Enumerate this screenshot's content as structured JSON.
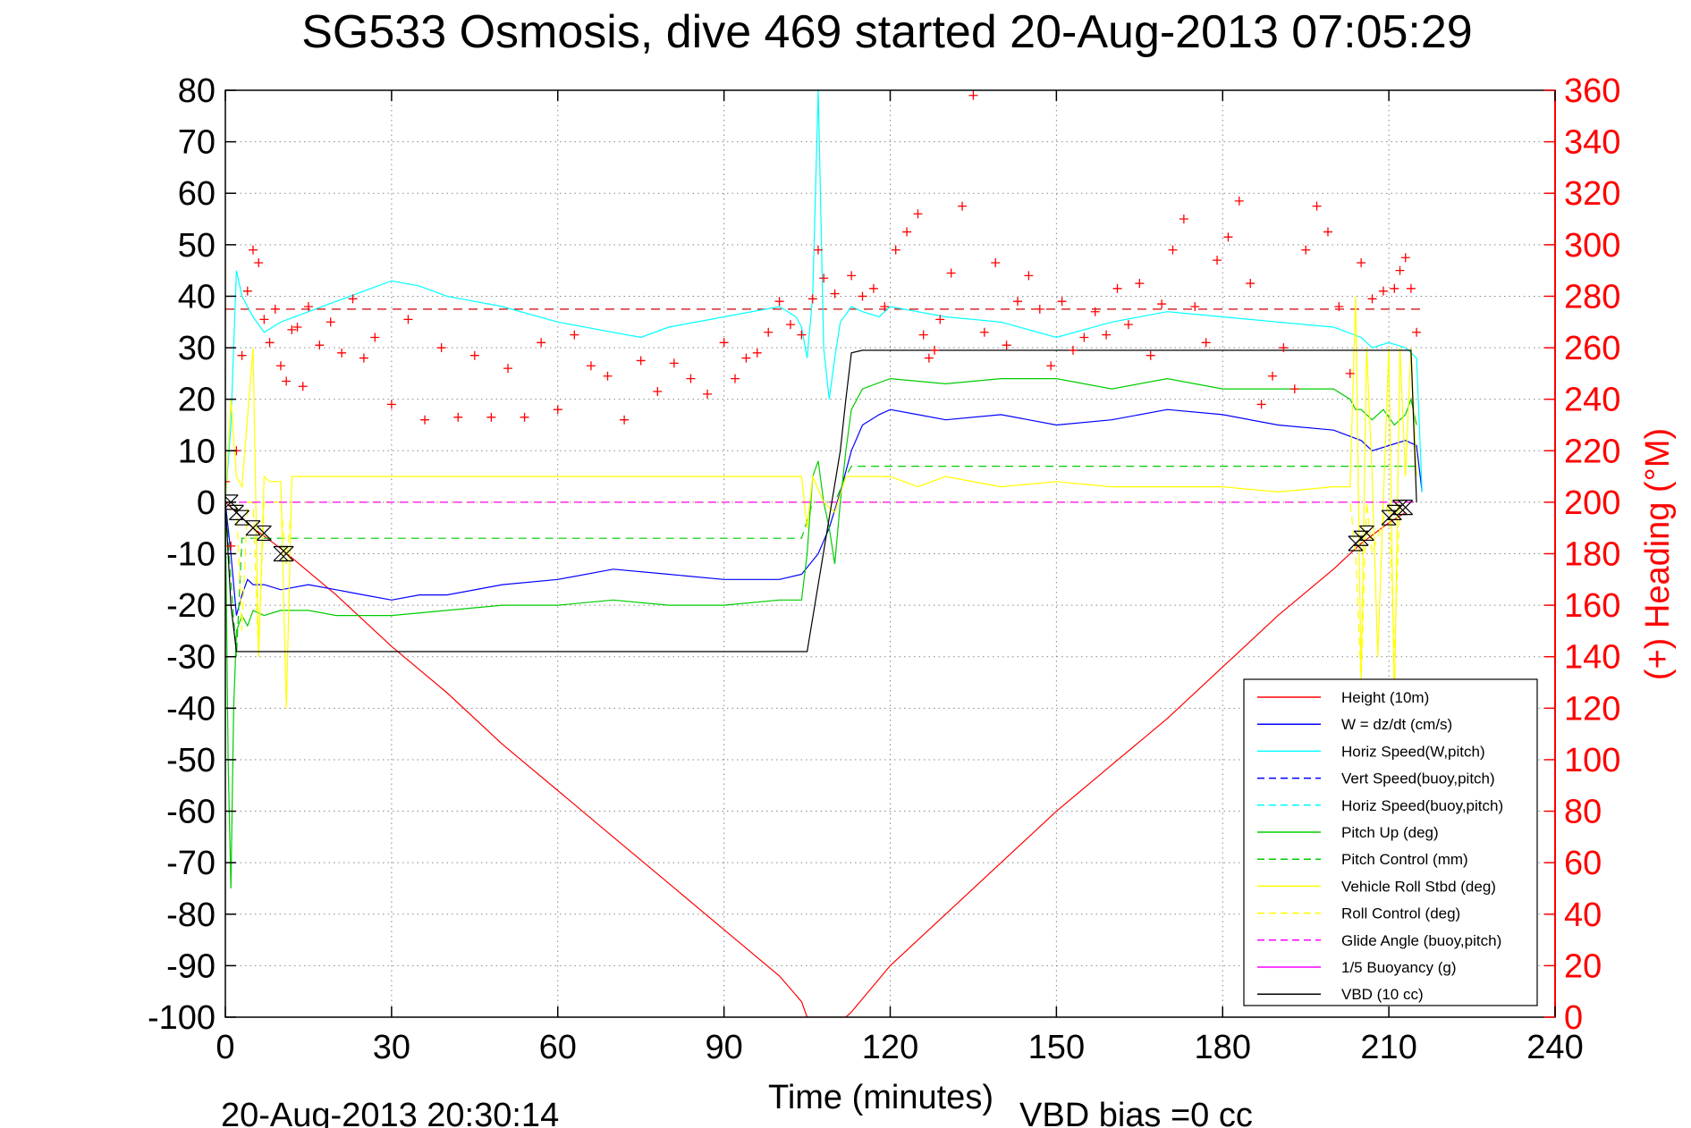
{
  "chart_data": {
    "type": "line",
    "title": "SG533 Osmosis, dive 469 started 20-Aug-2013 07:05:29",
    "xlabel": "Time (minutes)",
    "ylabel": "",
    "y2label": "(+) Heading (°M)",
    "footer_left": "20-Aug-2013 20:30:14",
    "footer_right": "VBD bias =0 cc",
    "xlim": [
      0,
      240
    ],
    "ylim": [
      -100,
      80
    ],
    "y2lim": [
      0,
      360
    ],
    "xticks": [
      0,
      30,
      60,
      90,
      120,
      150,
      180,
      210,
      240
    ],
    "yticks": [
      80,
      70,
      60,
      50,
      40,
      30,
      20,
      10,
      0,
      -10,
      -20,
      -30,
      -40,
      -50,
      -60,
      -70,
      -80,
      -90,
      -100
    ],
    "y2ticks": [
      360,
      340,
      320,
      300,
      280,
      260,
      240,
      220,
      200,
      180,
      160,
      140,
      120,
      100,
      80,
      60,
      40,
      20,
      0
    ],
    "grid": true,
    "legend_position": "lower-right",
    "colors": {
      "red": "#ff0000",
      "blue": "#0000ff",
      "cyan": "#00ffff",
      "green": "#00cc00",
      "yellow": "#ffff00",
      "magenta": "#ff00ff",
      "black": "#000000"
    },
    "legend": [
      {
        "name": "Height (10m)",
        "color": "#ff0000",
        "dash": false
      },
      {
        "name": "W = dz/dt (cm/s)",
        "color": "#0000ff",
        "dash": false
      },
      {
        "name": "Horiz Speed(W,pitch)",
        "color": "#00ffff",
        "dash": false
      },
      {
        "name": "Vert Speed(buoy,pitch)",
        "color": "#0000ff",
        "dash": true
      },
      {
        "name": "Horiz Speed(buoy,pitch)",
        "color": "#00ffff",
        "dash": true
      },
      {
        "name": "Pitch Up (deg)",
        "color": "#00cc00",
        "dash": false
      },
      {
        "name": "Pitch Control (mm)",
        "color": "#00cc00",
        "dash": true
      },
      {
        "name": "Vehicle Roll Stbd (deg)",
        "color": "#ffff00",
        "dash": false
      },
      {
        "name": "Roll Control (deg)",
        "color": "#ffff00",
        "dash": true
      },
      {
        "name": "Glide Angle (buoy,pitch)",
        "color": "#ff00ff",
        "dash": true
      },
      {
        "name": "1/5 Buoyancy (g)",
        "color": "#ff00ff",
        "dash": false
      },
      {
        "name": "VBD (10 cc)",
        "color": "#000000",
        "dash": false
      }
    ],
    "series": [
      {
        "name": "Height (10m)",
        "color": "#ff0000",
        "dash": false,
        "x": [
          0,
          5,
          10,
          20,
          30,
          40,
          50,
          60,
          70,
          80,
          90,
          100,
          104,
          105,
          112,
          113,
          120,
          130,
          140,
          150,
          160,
          170,
          180,
          190,
          200,
          205,
          210,
          213
        ],
        "y": [
          0,
          -5,
          -9,
          -18,
          -28,
          -37,
          -47,
          -56,
          -65,
          -74,
          -83,
          -92,
          -97,
          -100,
          -100,
          -99,
          -90,
          -80,
          -70,
          -60,
          -51,
          -42,
          -32,
          -22,
          -13,
          -8,
          -4,
          -2
        ]
      },
      {
        "name": "W = dz/dt (cm/s)",
        "color": "#0000ff",
        "dash": false,
        "x": [
          0,
          1,
          2,
          3,
          4,
          5,
          7,
          10,
          15,
          20,
          25,
          30,
          35,
          40,
          50,
          60,
          70,
          80,
          90,
          100,
          104,
          107,
          109,
          111,
          113,
          115,
          118,
          120,
          125,
          130,
          140,
          150,
          160,
          170,
          180,
          190,
          200,
          205,
          207,
          210,
          213,
          215,
          216
        ],
        "y": [
          0,
          -10,
          -22,
          -18,
          -15,
          -16,
          -16,
          -17,
          -16,
          -17,
          -18,
          -19,
          -18,
          -18,
          -16,
          -15,
          -13,
          -14,
          -15,
          -15,
          -14,
          -10,
          -5,
          2,
          10,
          15,
          17,
          18,
          17,
          16,
          17,
          15,
          16,
          18,
          17,
          15,
          14,
          12,
          10,
          11,
          12,
          11,
          2
        ]
      },
      {
        "name": "Horiz Speed(W,pitch)",
        "color": "#00ffff",
        "dash": false,
        "x": [
          0,
          1,
          2,
          3,
          4,
          5,
          7,
          10,
          15,
          20,
          25,
          30,
          35,
          40,
          50,
          60,
          70,
          75,
          80,
          90,
          100,
          103,
          104,
          105,
          106,
          107,
          108,
          109,
          110,
          111,
          113,
          115,
          118,
          120,
          125,
          130,
          140,
          150,
          160,
          170,
          180,
          190,
          200,
          205,
          207,
          210,
          213,
          215,
          216
        ],
        "y": [
          0,
          15,
          45,
          40,
          38,
          36,
          33,
          35,
          37,
          39,
          41,
          43,
          42,
          40,
          38,
          35,
          33,
          32,
          34,
          36,
          38,
          36,
          34,
          28,
          40,
          80,
          30,
          20,
          28,
          35,
          38,
          37,
          36,
          38,
          37,
          36,
          35,
          32,
          35,
          37,
          36,
          35,
          34,
          32,
          30,
          31,
          30,
          28,
          2
        ]
      },
      {
        "name": "Pitch Up (deg)",
        "color": "#00cc00",
        "dash": false,
        "x": [
          0,
          0.5,
          1,
          1.5,
          2,
          3,
          4,
          5,
          7,
          10,
          15,
          20,
          30,
          40,
          50,
          60,
          70,
          80,
          90,
          100,
          104,
          105,
          106,
          107,
          108,
          109,
          110,
          111,
          112,
          113,
          115,
          120,
          130,
          140,
          150,
          160,
          170,
          180,
          190,
          200,
          203,
          204,
          205,
          207,
          209,
          211,
          213,
          214,
          215
        ],
        "y": [
          0,
          -50,
          -75,
          -40,
          -25,
          -22,
          -24,
          -21,
          -22,
          -21,
          -21,
          -22,
          -22,
          -21,
          -20,
          -20,
          -19,
          -20,
          -20,
          -19,
          -19,
          -10,
          5,
          8,
          0,
          -5,
          -12,
          0,
          10,
          18,
          22,
          24,
          23,
          24,
          24,
          22,
          24,
          22,
          22,
          22,
          20,
          18,
          18,
          16,
          18,
          15,
          17,
          20,
          15
        ]
      },
      {
        "name": "Pitch Control (mm)",
        "color": "#00cc00",
        "dash": true,
        "x": [
          0,
          2,
          3,
          5,
          104,
          106,
          108,
          110,
          112,
          113,
          114,
          215
        ],
        "y": [
          0,
          -30,
          -7,
          -7,
          -7,
          0,
          0,
          0,
          5,
          7,
          7,
          7
        ]
      },
      {
        "name": "Vehicle Roll Stbd (deg)",
        "color": "#ffff00",
        "dash": false,
        "x": [
          0,
          1,
          2,
          3,
          5,
          6,
          7,
          8,
          10,
          11,
          12,
          15,
          30,
          50,
          70,
          90,
          104,
          105,
          106,
          108,
          110,
          112,
          115,
          120,
          125,
          130,
          140,
          150,
          160,
          170,
          180,
          190,
          200,
          203,
          204,
          205,
          206,
          207,
          208,
          210,
          211,
          212,
          213,
          214,
          215
        ],
        "y": [
          0,
          20,
          5,
          3,
          30,
          -30,
          5,
          4,
          4,
          -40,
          5,
          5,
          5,
          5,
          5,
          5,
          5,
          -5,
          5,
          0,
          -2,
          5,
          5,
          5,
          3,
          5,
          3,
          4,
          3,
          3,
          3,
          2,
          3,
          3,
          40,
          -35,
          30,
          5,
          -30,
          30,
          -40,
          30,
          5,
          30,
          5
        ]
      },
      {
        "name": "Roll Control (deg)",
        "color": "#ffff00",
        "dash": true,
        "x": [
          0,
          2,
          3,
          4,
          5,
          6,
          7,
          10,
          11,
          12,
          203,
          204,
          205,
          206,
          207,
          210,
          211,
          212
        ],
        "y": [
          0,
          0,
          -25,
          0,
          0,
          -30,
          0,
          0,
          -12,
          0,
          0,
          -10,
          -35,
          0,
          -10,
          0,
          -30,
          0
        ]
      },
      {
        "name": "Glide Angle (buoy,pitch)",
        "color": "#ff00ff",
        "dash": true,
        "x": [
          0,
          215
        ],
        "y": [
          0,
          0
        ]
      },
      {
        "name": "VBD (10 cc)",
        "color": "#000000",
        "dash": false,
        "x": [
          0,
          1,
          2,
          104,
          105,
          111,
          112,
          113,
          115,
          214,
          215
        ],
        "y": [
          0,
          -20,
          -29,
          -29,
          -29,
          10,
          20,
          29,
          29.5,
          29.5,
          0
        ]
      },
      {
        "name": "Heading",
        "color": "#ff0000",
        "marker": "+",
        "axis": "right",
        "x": [
          0,
          1,
          2,
          3,
          4,
          5,
          6,
          7,
          8,
          9,
          10,
          11,
          12,
          13,
          14,
          15,
          17,
          19,
          21,
          23,
          25,
          27,
          30,
          33,
          36,
          39,
          42,
          45,
          48,
          51,
          54,
          57,
          60,
          63,
          66,
          69,
          72,
          75,
          78,
          81,
          84,
          87,
          90,
          92,
          94,
          96,
          98,
          100,
          102,
          104,
          106,
          107,
          108,
          110,
          113,
          115,
          117,
          119,
          121,
          123,
          125,
          126,
          127,
          128,
          129,
          131,
          133,
          135,
          137,
          139,
          141,
          143,
          145,
          147,
          149,
          151,
          153,
          155,
          157,
          159,
          161,
          163,
          165,
          167,
          169,
          171,
          173,
          175,
          177,
          179,
          181,
          183,
          185,
          187,
          189,
          191,
          193,
          195,
          197,
          199,
          201,
          203,
          205,
          207,
          209,
          211,
          212,
          213,
          214,
          215
        ],
        "y": [
          208,
          183,
          220,
          257,
          282,
          298,
          293,
          271,
          262,
          275,
          253,
          247,
          267,
          268,
          245,
          276,
          261,
          270,
          258,
          279,
          256,
          264,
          238,
          271,
          232,
          260,
          233,
          257,
          233,
          252,
          233,
          262,
          236,
          265,
          253,
          249,
          232,
          255,
          243,
          254,
          248,
          242,
          262,
          248,
          256,
          258,
          266,
          278,
          269,
          265,
          279,
          298,
          287,
          281,
          288,
          280,
          283,
          276,
          298,
          305,
          312,
          265,
          256,
          259,
          271,
          289,
          315,
          358,
          266,
          293,
          261,
          278,
          288,
          275,
          253,
          278,
          259,
          264,
          274,
          265,
          283,
          269,
          285,
          257,
          277,
          298,
          310,
          276,
          262,
          294,
          303,
          317,
          285,
          238,
          249,
          260,
          244,
          298,
          315,
          305,
          276,
          250,
          293,
          279,
          282,
          283,
          290,
          295,
          283,
          266
        ]
      }
    ],
    "markers_x": [
      {
        "x": 1,
        "y": 0
      },
      {
        "x": 2,
        "y": -2
      },
      {
        "x": 3,
        "y": -3
      },
      {
        "x": 5,
        "y": -5
      },
      {
        "x": 7,
        "y": -6
      },
      {
        "x": 10,
        "y": -10
      },
      {
        "x": 11,
        "y": -10
      },
      {
        "x": 204,
        "y": -8
      },
      {
        "x": 205,
        "y": -7
      },
      {
        "x": 206,
        "y": -6
      },
      {
        "x": 210,
        "y": -3
      },
      {
        "x": 211,
        "y": -2
      },
      {
        "x": 212,
        "y": -1
      },
      {
        "x": 213,
        "y": -1
      }
    ]
  }
}
